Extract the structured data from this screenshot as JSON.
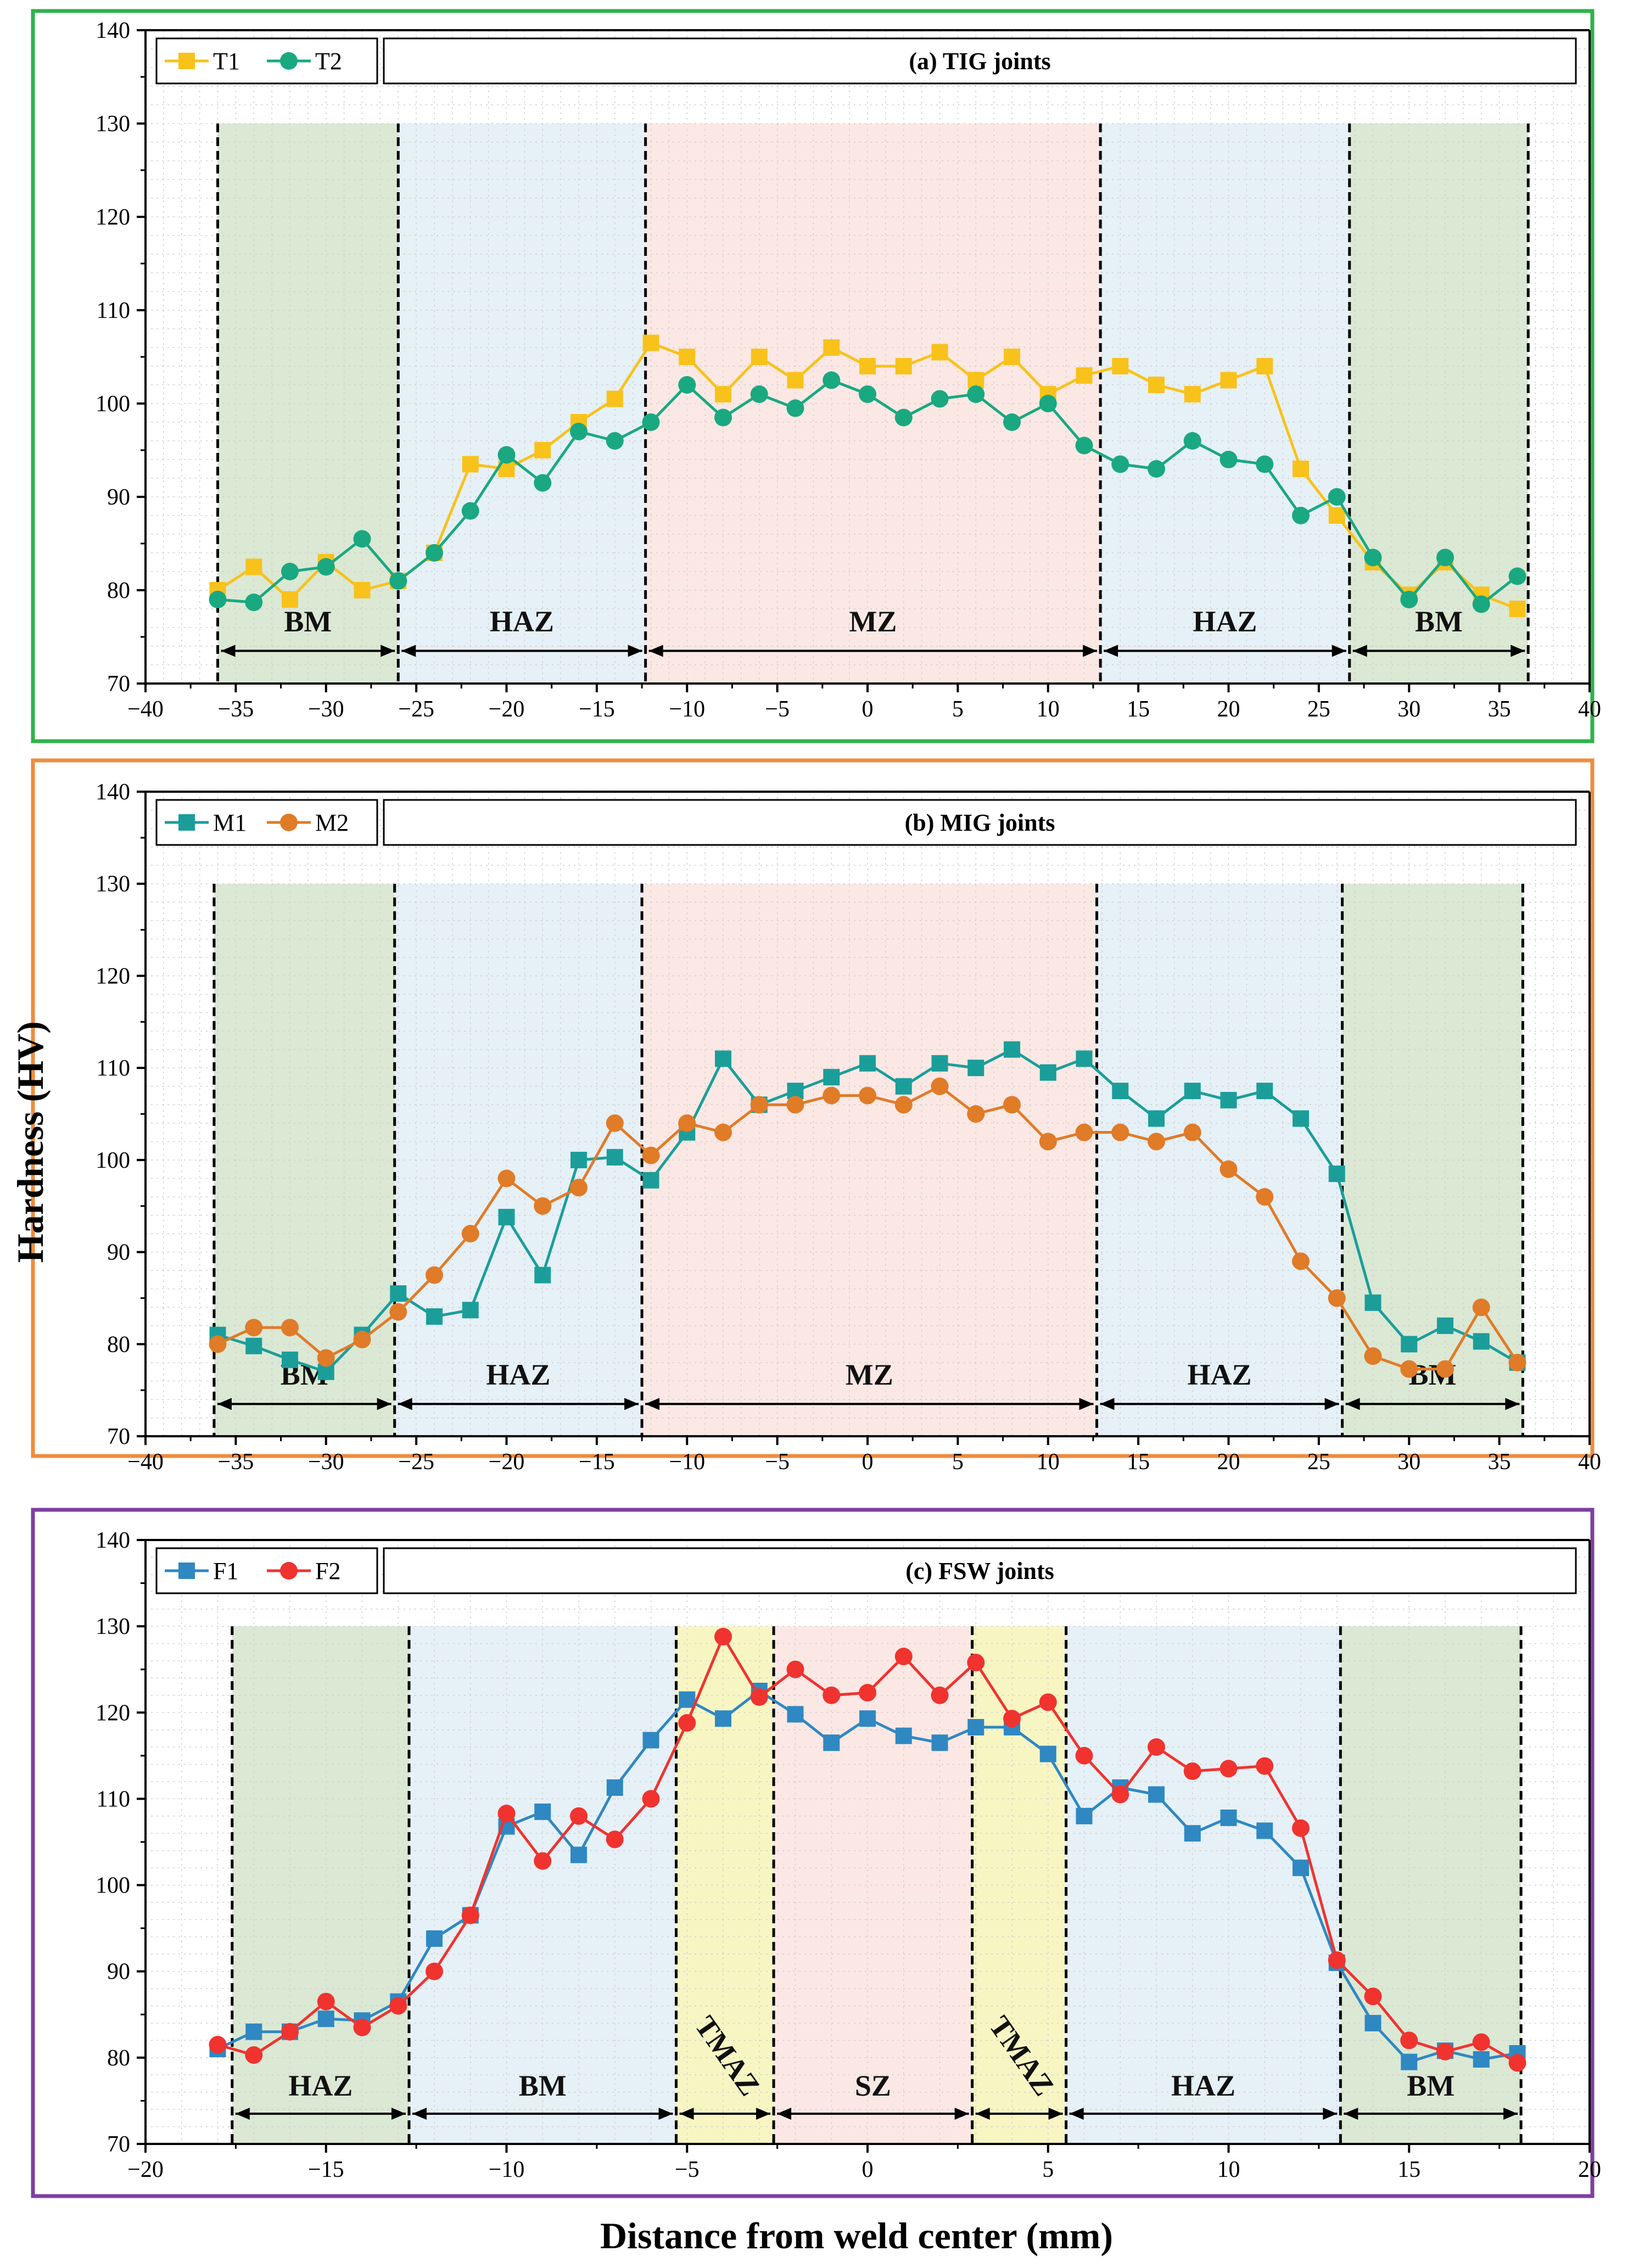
{
  "chart_data": {
    "type": "line",
    "shared_xlabel": "Distance from weld center (mm)",
    "shared_ylabel": "Hardness (HV)",
    "panels": [
      {
        "id": "tig",
        "title": "(a) TIG joints",
        "frame_color": "#2db34a",
        "xlim": [
          -40,
          40
        ],
        "ylim": [
          70,
          140
        ],
        "xticks": [
          -40,
          -35,
          -30,
          -25,
          -20,
          -15,
          -10,
          -5,
          0,
          5,
          10,
          15,
          20,
          25,
          30,
          35,
          40
        ],
        "xtick_labels": [
          "−40",
          "−35",
          "−30",
          "−25",
          "−20",
          "−15",
          "−10",
          "−5",
          "0",
          "5",
          "10",
          "15",
          "20",
          "25",
          "30",
          "35",
          "40"
        ],
        "yticks": [
          70,
          80,
          90,
          100,
          110,
          120,
          130,
          140
        ],
        "zones": [
          {
            "label": "BM",
            "from": -36,
            "to": -26,
            "color": "#dbe8d4"
          },
          {
            "label": "HAZ",
            "from": -26,
            "to": -12.3,
            "color": "#e6f0f7"
          },
          {
            "label": "MZ",
            "from": -12.3,
            "to": 12.9,
            "color": "#fbe8e4"
          },
          {
            "label": "HAZ",
            "from": 12.9,
            "to": 26.7,
            "color": "#e6f0f7"
          },
          {
            "label": "BM",
            "from": 26.7,
            "to": 36.6,
            "color": "#dbe8d4"
          }
        ],
        "series": [
          {
            "name": "T1",
            "color": "#f8c21b",
            "marker": "square",
            "x": [
              -36,
              -34,
              -32,
              -30,
              -28,
              -26,
              -24,
              -22,
              -20,
              -18,
              -16,
              -14,
              -12,
              -10,
              -8,
              -6,
              -4,
              -2,
              0,
              2,
              4,
              6,
              8,
              10,
              12,
              14,
              16,
              18,
              20,
              22,
              24,
              26,
              28,
              30,
              32,
              34,
              36
            ],
            "y": [
              80,
              82.5,
              79,
              83,
              80,
              81,
              84,
              93.5,
              93,
              95,
              98,
              100.5,
              106.5,
              105,
              101,
              105,
              102.5,
              106,
              104,
              104,
              105.5,
              102.5,
              105,
              101,
              103,
              104,
              102,
              101,
              102.5,
              104,
              93,
              88,
              83,
              79.5,
              83,
              79.5,
              78
            ]
          },
          {
            "name": "T2",
            "color": "#1aa880",
            "marker": "circle",
            "x": [
              -36,
              -34,
              -32,
              -30,
              -28,
              -26,
              -24,
              -22,
              -20,
              -18,
              -16,
              -14,
              -12,
              -10,
              -8,
              -6,
              -4,
              -2,
              0,
              2,
              4,
              6,
              8,
              10,
              12,
              14,
              16,
              18,
              20,
              22,
              24,
              26,
              28,
              30,
              32,
              34,
              36
            ],
            "y": [
              79,
              78.7,
              82,
              82.5,
              85.5,
              81,
              84,
              88.5,
              94.5,
              91.5,
              97,
              96,
              98,
              102,
              98.5,
              101,
              99.5,
              102.5,
              101,
              98.5,
              100.5,
              101,
              98,
              100,
              95.5,
              93.5,
              93,
              96,
              94,
              93.5,
              88,
              90,
              83.5,
              79,
              83.5,
              78.5,
              81.5
            ]
          }
        ]
      },
      {
        "id": "mig",
        "title": "(b) MIG joints",
        "frame_color": "#ef8c3d",
        "xlim": [
          -40,
          40
        ],
        "ylim": [
          70,
          140
        ],
        "xticks": [
          -40,
          -35,
          -30,
          -25,
          -20,
          -15,
          -10,
          -5,
          0,
          5,
          10,
          15,
          20,
          25,
          30,
          35,
          40
        ],
        "xtick_labels": [
          "−40",
          "−35",
          "−30",
          "−25",
          "−20",
          "−15",
          "−10",
          "−5",
          "0",
          "5",
          "10",
          "15",
          "20",
          "25",
          "30",
          "35",
          "40"
        ],
        "yticks": [
          70,
          80,
          90,
          100,
          110,
          120,
          130,
          140
        ],
        "zones": [
          {
            "label": "BM",
            "from": -36.2,
            "to": -26.2,
            "color": "#dbe8d4"
          },
          {
            "label": "HAZ",
            "from": -26.2,
            "to": -12.5,
            "color": "#e6f0f7"
          },
          {
            "label": "MZ",
            "from": -12.5,
            "to": 12.7,
            "color": "#fbe8e4"
          },
          {
            "label": "HAZ",
            "from": 12.7,
            "to": 26.3,
            "color": "#e6f0f7"
          },
          {
            "label": "BM",
            "from": 26.3,
            "to": 36.3,
            "color": "#dbe8d4"
          }
        ],
        "series": [
          {
            "name": "M1",
            "color": "#1b9e9a",
            "marker": "square",
            "x": [
              -36,
              -34,
              -32,
              -30,
              -28,
              -26,
              -24,
              -22,
              -20,
              -18,
              -16,
              -14,
              -12,
              -10,
              -8,
              -6,
              -4,
              -2,
              0,
              2,
              4,
              6,
              8,
              10,
              12,
              14,
              16,
              18,
              20,
              22,
              24,
              26,
              28,
              30,
              32,
              34,
              36
            ],
            "y": [
              81,
              79.8,
              78.3,
              77,
              81,
              85.5,
              83,
              83.7,
              93.8,
              87.5,
              100,
              100.3,
              97.8,
              103,
              111,
              106,
              107.5,
              109,
              110.5,
              108,
              110.5,
              110,
              112,
              109.5,
              111,
              107.5,
              104.5,
              107.5,
              106.5,
              107.5,
              104.5,
              98.5,
              84.5,
              80,
              82,
              80.3,
              78
            ]
          },
          {
            "name": "M2",
            "color": "#e07b28",
            "marker": "circle",
            "x": [
              -36,
              -34,
              -32,
              -30,
              -28,
              -26,
              -24,
              -22,
              -20,
              -18,
              -16,
              -14,
              -12,
              -10,
              -8,
              -6,
              -4,
              -2,
              0,
              2,
              4,
              6,
              8,
              10,
              12,
              14,
              16,
              18,
              20,
              22,
              24,
              26,
              28,
              30,
              32,
              34,
              36
            ],
            "y": [
              80,
              81.8,
              81.8,
              78.5,
              80.5,
              83.5,
              87.5,
              92,
              98,
              95,
              97,
              104,
              100.5,
              104,
              103,
              106,
              106,
              107,
              107,
              106,
              108,
              105,
              106,
              102,
              103,
              103,
              102,
              103,
              99,
              96,
              89,
              85,
              78.7,
              77.3,
              77.3,
              84,
              78
            ]
          }
        ]
      },
      {
        "id": "fsw",
        "title": "(c) FSW joints",
        "frame_color": "#7e3fa0",
        "xlim": [
          -20,
          20
        ],
        "ylim": [
          70,
          140
        ],
        "xticks": [
          -20,
          -15,
          -10,
          -5,
          0,
          5,
          10,
          15,
          20
        ],
        "xtick_labels": [
          "−20",
          "−15",
          "−10",
          "−5",
          "0",
          "5",
          "10",
          "15",
          "20"
        ],
        "yticks": [
          70,
          80,
          90,
          100,
          110,
          120,
          130,
          140
        ],
        "zones": [
          {
            "label": "HAZ",
            "from": -17.6,
            "to": -12.7,
            "color": "#dbe8d4"
          },
          {
            "label": "BM",
            "from": -12.7,
            "to": -5.3,
            "color": "#e6f0f7"
          },
          {
            "label": "TMAZ",
            "from": -5.3,
            "to": -2.6,
            "color": "#f7f6c3",
            "rotated": true
          },
          {
            "label": "SZ",
            "from": -2.6,
            "to": 2.9,
            "color": "#fbe8e4"
          },
          {
            "label": "TMAZ",
            "from": 2.9,
            "to": 5.5,
            "color": "#f7f6c3",
            "rotated": true
          },
          {
            "label": "HAZ",
            "from": 5.5,
            "to": 13.1,
            "color": "#e6f0f7"
          },
          {
            "label": "BM",
            "from": 13.1,
            "to": 18.1,
            "color": "#dbe8d4"
          }
        ],
        "series": [
          {
            "name": "F1",
            "color": "#2f88c2",
            "marker": "square",
            "x": [
              -18,
              -17,
              -16,
              -15,
              -14,
              -13,
              -12,
              -11,
              -10,
              -9,
              -8,
              -7,
              -6,
              -5,
              -4,
              -3,
              -2,
              -1,
              0,
              1,
              2,
              3,
              4,
              5,
              6,
              7,
              8,
              9,
              10,
              11,
              12,
              13,
              14,
              15,
              16,
              17,
              18
            ],
            "y": [
              81,
              83,
              83,
              84.5,
              84.3,
              86.5,
              93.8,
              96.5,
              106.8,
              108.5,
              103.5,
              111.3,
              116.8,
              121.5,
              119.3,
              122.5,
              119.8,
              116.5,
              119.3,
              117.3,
              116.5,
              118.3,
              118.3,
              115.2,
              108,
              111.3,
              110.5,
              106,
              107.8,
              106.3,
              102,
              91,
              84,
              79.5,
              80.8,
              79.8,
              80.5
            ]
          },
          {
            "name": "F2",
            "color": "#f0332f",
            "marker": "circle",
            "x": [
              -18,
              -17,
              -16,
              -15,
              -14,
              -13,
              -12,
              -11,
              -10,
              -9,
              -8,
              -7,
              -6,
              -5,
              -4,
              -3,
              -2,
              -1,
              0,
              1,
              2,
              3,
              4,
              5,
              6,
              7,
              8,
              9,
              10,
              11,
              12,
              13,
              14,
              15,
              16,
              17,
              18
            ],
            "y": [
              81.5,
              80.3,
              83,
              86.5,
              83.5,
              86,
              90,
              96.5,
              108.3,
              102.8,
              108,
              105.3,
              110,
              118.8,
              128.8,
              121.8,
              125,
              122,
              122.3,
              126.5,
              122,
              125.8,
              119.3,
              121.2,
              115,
              110.5,
              116,
              113.2,
              113.5,
              113.8,
              106.6,
              91.3,
              87.1,
              82,
              80.7,
              81.8,
              79.4
            ]
          }
        ]
      }
    ]
  }
}
